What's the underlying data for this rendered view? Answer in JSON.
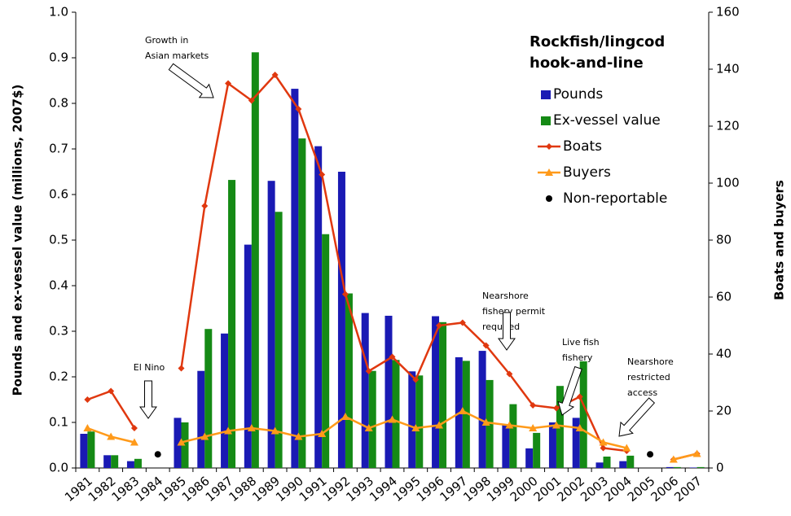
{
  "chart_data": {
    "type": "bar-line",
    "categories": [
      "1981",
      "1982",
      "1983",
      "1984",
      "1985",
      "1986",
      "1987",
      "1988",
      "1989",
      "1990",
      "1991",
      "1992",
      "1993",
      "1994",
      "1995",
      "1996",
      "1997",
      "1998",
      "1999",
      "2000",
      "2001",
      "2002",
      "2003",
      "2004",
      "2005",
      "2006",
      "2007"
    ],
    "series": [
      {
        "name": "Pounds",
        "type": "bar",
        "color": "#1a1ab4",
        "axis": "y",
        "values": [
          0.075,
          0.028,
          0.015,
          null,
          0.11,
          0.213,
          0.295,
          0.49,
          0.63,
          0.832,
          0.706,
          0.65,
          0.34,
          0.334,
          0.212,
          0.333,
          0.243,
          0.257,
          0.095,
          0.043,
          0.1,
          0.11,
          0.012,
          0.015,
          null,
          0.002,
          0.001
        ]
      },
      {
        "name": "Ex-vessel value",
        "type": "bar",
        "color": "#158a15",
        "axis": "y",
        "values": [
          0.08,
          0.028,
          0.02,
          null,
          0.1,
          0.305,
          0.632,
          0.912,
          0.562,
          0.723,
          0.513,
          0.383,
          0.213,
          0.237,
          0.203,
          0.32,
          0.235,
          0.193,
          0.14,
          0.077,
          0.18,
          0.234,
          0.025,
          0.027,
          null,
          0.002,
          0.002
        ]
      },
      {
        "name": "Boats",
        "type": "line",
        "marker": "diamond",
        "color": "#e0380f",
        "axis": "y2",
        "values": [
          24,
          27,
          14,
          null,
          35,
          92,
          135,
          129,
          138,
          126,
          103,
          61,
          34,
          39,
          31,
          50,
          51,
          43,
          33,
          22,
          21,
          25,
          7,
          6,
          null,
          3,
          5
        ]
      },
      {
        "name": "Buyers",
        "type": "line",
        "marker": "triangle",
        "color": "#ff9a1a",
        "axis": "y2",
        "values": [
          14,
          11,
          9,
          null,
          9,
          11,
          13,
          14,
          13,
          11,
          12,
          18,
          14,
          17,
          14,
          15,
          20,
          16,
          15,
          14,
          15,
          14,
          9,
          7,
          null,
          3,
          5
        ]
      },
      {
        "name": "Non-reportable",
        "type": "scatter",
        "color": "#000000",
        "axis": "y",
        "values": [
          null,
          null,
          null,
          0.03,
          null,
          null,
          null,
          null,
          null,
          null,
          null,
          null,
          null,
          null,
          null,
          null,
          null,
          null,
          null,
          null,
          null,
          null,
          null,
          null,
          0.03,
          null,
          null
        ]
      }
    ],
    "ylabel": "Pounds and ex-vessel value (millions, 2007$)",
    "y2label": "Boats and buyers",
    "ylim": [
      0,
      1.0
    ],
    "yticks": [
      {
        "value": 0,
        "label": "0.0"
      },
      0.1,
      0.2,
      0.3,
      0.4,
      0.5,
      0.6,
      0.7,
      0.8,
      0.9,
      {
        "value": 1,
        "label": "1.0"
      }
    ],
    "y2lim": [
      0,
      160
    ],
    "y2ticks": [
      0,
      20,
      40,
      60,
      80,
      100,
      120,
      140,
      160
    ],
    "grid": false,
    "legend_title": [
      "Rockfish/lingcod",
      "hook-and-line"
    ],
    "legend_position": "upper right",
    "annotations": [
      {
        "lines": [
          "Growth in",
          "Asian markets"
        ]
      },
      {
        "lines": [
          "El Nino"
        ]
      },
      {
        "lines": [
          "Nearshore",
          "fishery permit",
          "required"
        ]
      },
      {
        "lines": [
          "Live fish",
          "fishery"
        ]
      },
      {
        "lines": [
          "Nearshore",
          "restricted",
          "access"
        ]
      }
    ]
  }
}
